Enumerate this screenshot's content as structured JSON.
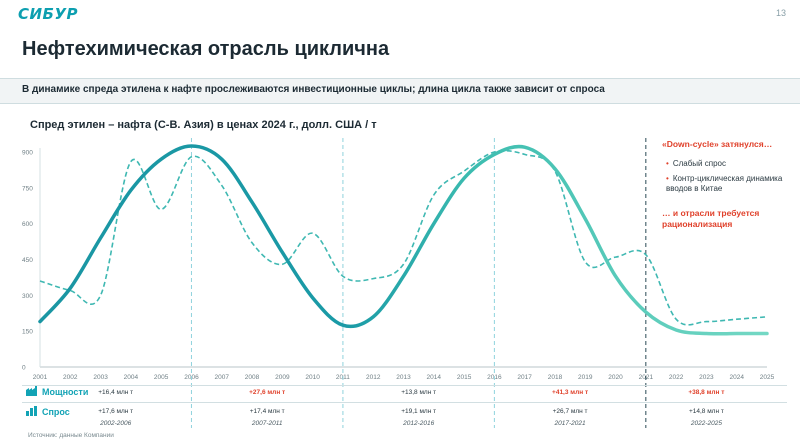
{
  "logo": "СИБУР",
  "page_number": "13",
  "title": "Нефтехимическая отрасль циклична",
  "subtitle": "В динамике спреда этилена к нафте прослеживаются инвестиционные циклы; длина цикла также зависит от спроса",
  "source": "Источник: данные Компании",
  "annotation": {
    "title": "«Down-cycle» затянулся…",
    "items": [
      "Слабый спрос",
      "Контр-циклическая динамика вводов в Китае"
    ],
    "footer": "… и отрасли требуется рационализация"
  },
  "table": {
    "rows": [
      {
        "label": "Мощности",
        "values": [
          "+16,4 млн т",
          "+27,6 млн т",
          "+13,8 млн т",
          "+41,3 млн т",
          "+38,8 млн т"
        ],
        "highlight": [
          false,
          true,
          false,
          true,
          true
        ]
      },
      {
        "label": "Спрос",
        "values": [
          "+17,6 млн т",
          "+17,4 млн т",
          "+19,1 млн т",
          "+26,7 млн т",
          "+14,8 млн т"
        ],
        "highlight": [
          false,
          false,
          false,
          false,
          false
        ]
      }
    ],
    "periods": [
      "2002-2006",
      "2007-2011",
      "2012-2016",
      "2017-2021",
      "2022-2025"
    ]
  },
  "colors": {
    "brand": "#0d9fb0",
    "dark_teal": "#1a9aa6",
    "light_teal": "#5ccdbb",
    "red": "#e0412b"
  },
  "chart_data": {
    "type": "line",
    "title": "Спред этилен – нафта (С-В. Азия) в ценах 2024 г., долл. США / т",
    "x": [
      "2001",
      "2002",
      "2003",
      "2004",
      "2005",
      "2006",
      "2007",
      "2008",
      "2009",
      "2010",
      "2011",
      "2012",
      "2013",
      "2014",
      "2015",
      "2016",
      "2017",
      "2018",
      "2019",
      "2020",
      "2021",
      "2022",
      "2023",
      "2024",
      "2025"
    ],
    "ylim": [
      0,
      900
    ],
    "yticks": [
      0,
      150,
      300,
      450,
      600,
      750,
      900
    ],
    "series": [
      {
        "style": "dashed",
        "values": [
          360,
          320,
          300,
          860,
          660,
          880,
          760,
          520,
          430,
          560,
          380,
          370,
          430,
          720,
          820,
          900,
          890,
          820,
          440,
          460,
          470,
          200,
          190,
          200,
          210
        ]
      },
      {
        "style": "solid",
        "values": [
          190,
          330,
          540,
          740,
          870,
          925,
          870,
          690,
          480,
          290,
          175,
          210,
          380,
          600,
          790,
          890,
          920,
          830,
          620,
          380,
          230,
          155,
          140,
          140,
          140
        ]
      }
    ],
    "vlines": [
      "2006",
      "2011",
      "2016",
      "2021"
    ],
    "grid": false
  }
}
